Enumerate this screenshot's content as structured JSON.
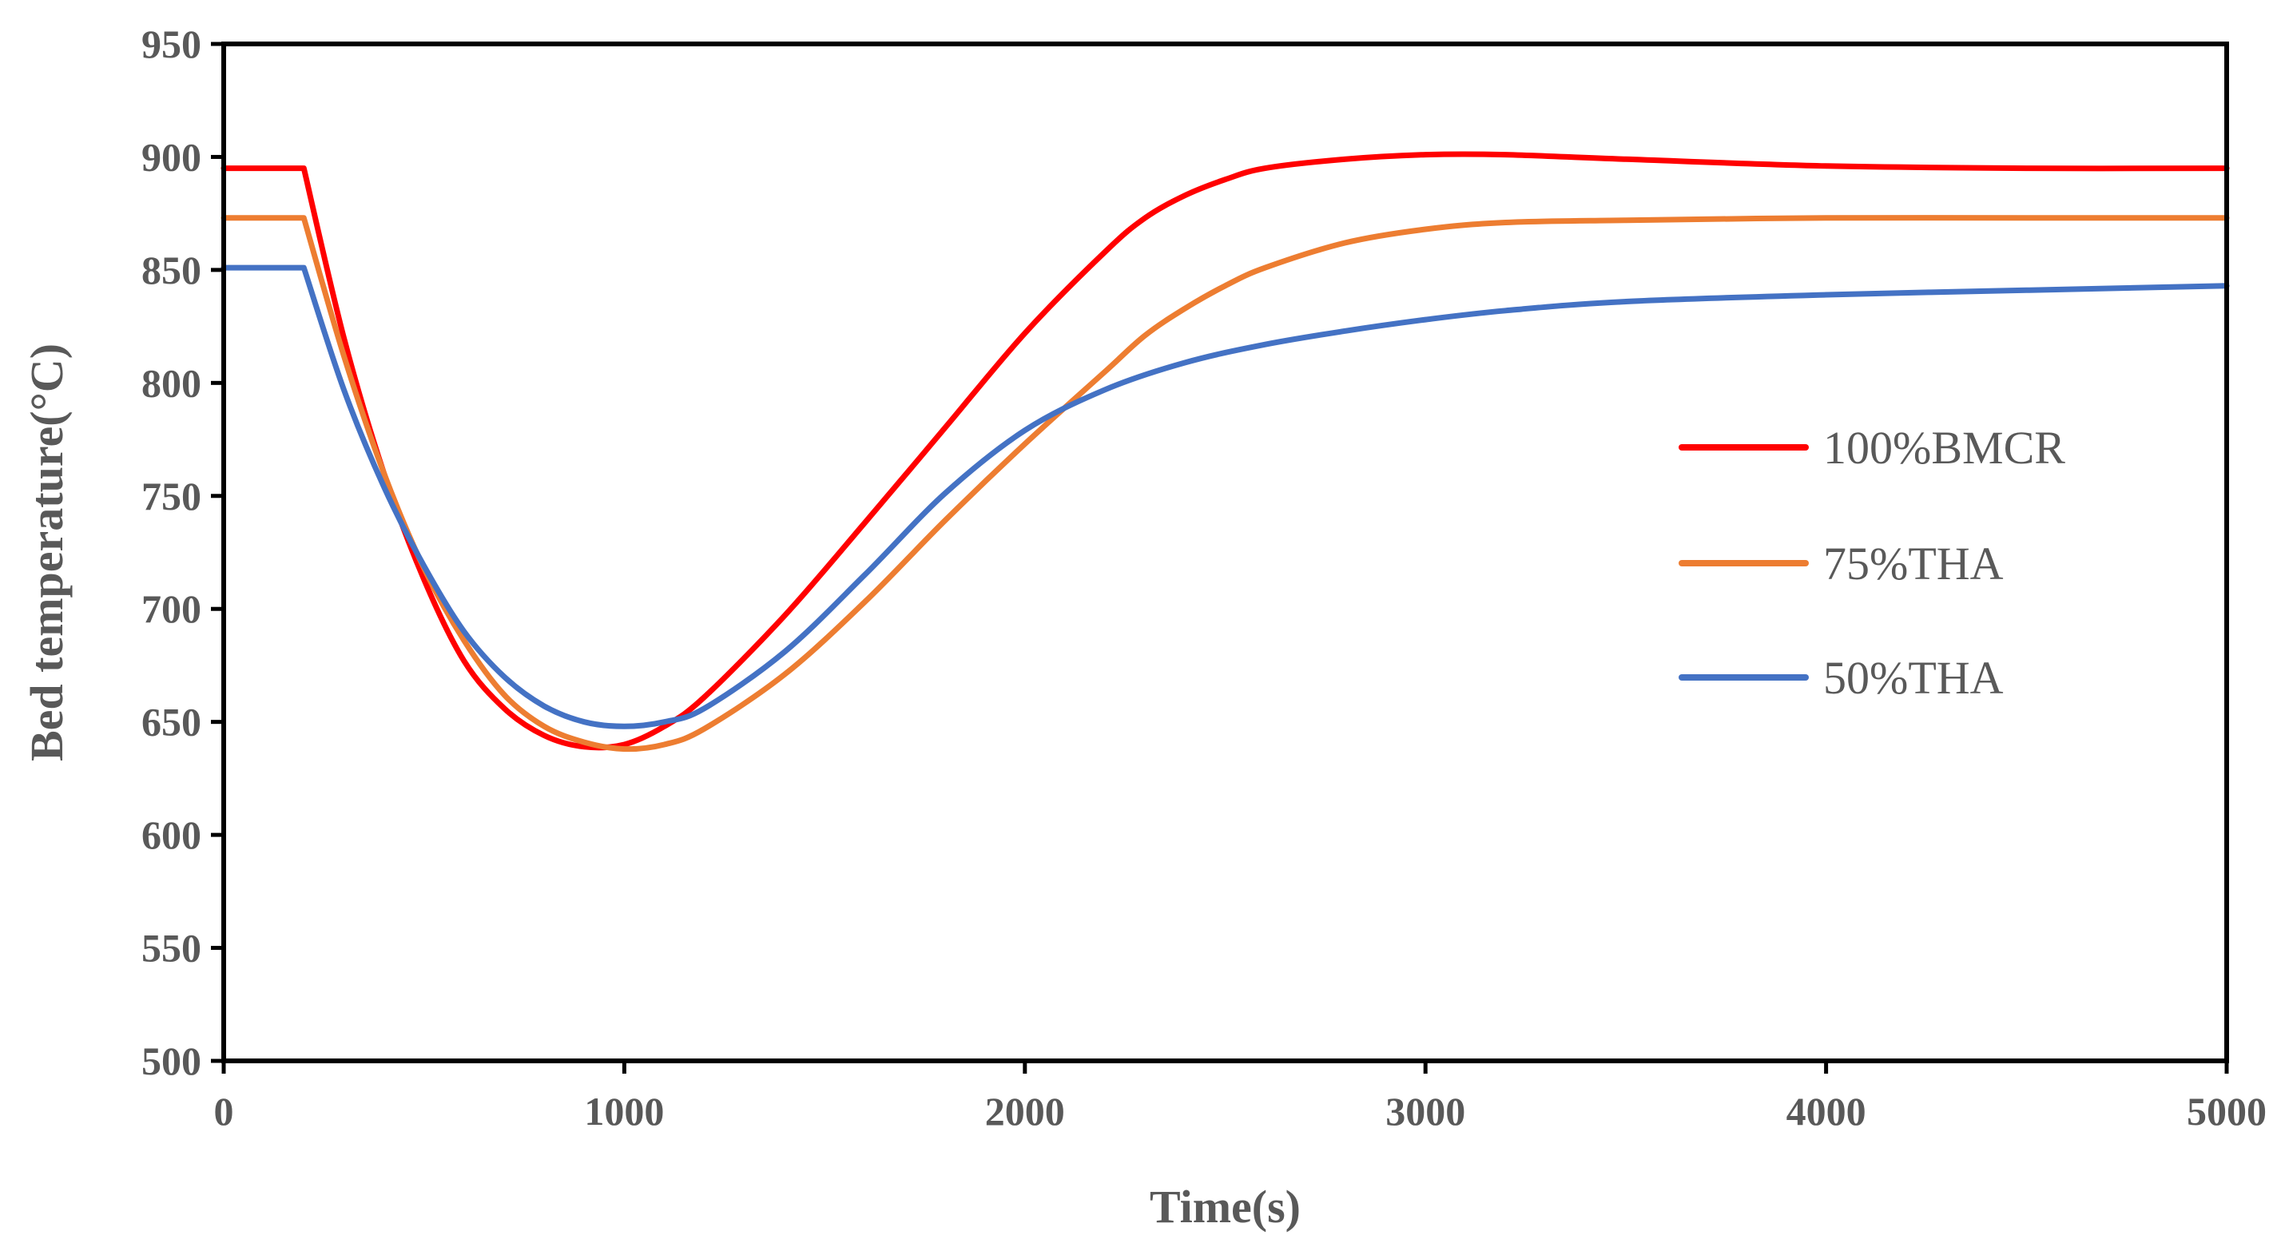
{
  "chart_data": {
    "type": "line",
    "title": "",
    "xlabel": "Time(s)",
    "ylabel": "Bed temperature(°C)",
    "xlim": [
      0,
      5000
    ],
    "ylim": [
      500,
      950
    ],
    "xticks": [
      0,
      1000,
      2000,
      3000,
      4000,
      5000
    ],
    "yticks": [
      500,
      550,
      600,
      650,
      700,
      750,
      800,
      850,
      900,
      950
    ],
    "xtick_labels": [
      "0",
      "1000",
      "2000",
      "3000",
      "4000",
      "5000"
    ],
    "ytick_labels": [
      "500",
      "550",
      "600",
      "650",
      "700",
      "750",
      "800",
      "850",
      "900",
      "950"
    ],
    "grid": false,
    "legend_position": "right",
    "series": [
      {
        "name": "100%BMCR",
        "color": "#FF0000",
        "x": [
          0,
          200,
          300,
          400,
          500,
          600,
          700,
          800,
          900,
          1000,
          1100,
          1200,
          1400,
          1600,
          1800,
          2000,
          2200,
          2300,
          2400,
          2500,
          2600,
          2800,
          3000,
          3200,
          3500,
          4000,
          4500,
          5000
        ],
        "y": [
          895,
          895,
          820,
          760,
          713,
          677,
          656,
          644,
          639,
          640,
          648,
          661,
          697,
          738,
          780,
          822,
          858,
          873,
          883,
          890,
          895,
          899,
          901,
          901,
          899,
          896,
          895,
          895
        ]
      },
      {
        "name": "75%THA",
        "color": "#ED7D31",
        "x": [
          0,
          200,
          300,
          400,
          500,
          600,
          700,
          800,
          900,
          1000,
          1100,
          1200,
          1400,
          1600,
          1800,
          2000,
          2200,
          2300,
          2400,
          2500,
          2600,
          2800,
          3000,
          3200,
          3500,
          4000,
          4500,
          5000
        ],
        "y": [
          873,
          873,
          812,
          760,
          718,
          686,
          662,
          648,
          641,
          638,
          640,
          647,
          671,
          703,
          739,
          773,
          805,
          821,
          833,
          843,
          851,
          862,
          868,
          871,
          872,
          873,
          873,
          873
        ]
      },
      {
        "name": "50%THA",
        "color": "#4472C4",
        "x": [
          0,
          200,
          300,
          400,
          500,
          600,
          700,
          800,
          900,
          1000,
          1100,
          1200,
          1400,
          1600,
          1800,
          2000,
          2200,
          2400,
          2600,
          2800,
          3000,
          3200,
          3500,
          4000,
          4500,
          5000
        ],
        "y": [
          851,
          851,
          797,
          754,
          719,
          690,
          670,
          657,
          650,
          648,
          650,
          656,
          681,
          715,
          751,
          779,
          797,
          809,
          817,
          823,
          828,
          832,
          836,
          839,
          841,
          843
        ]
      }
    ]
  }
}
